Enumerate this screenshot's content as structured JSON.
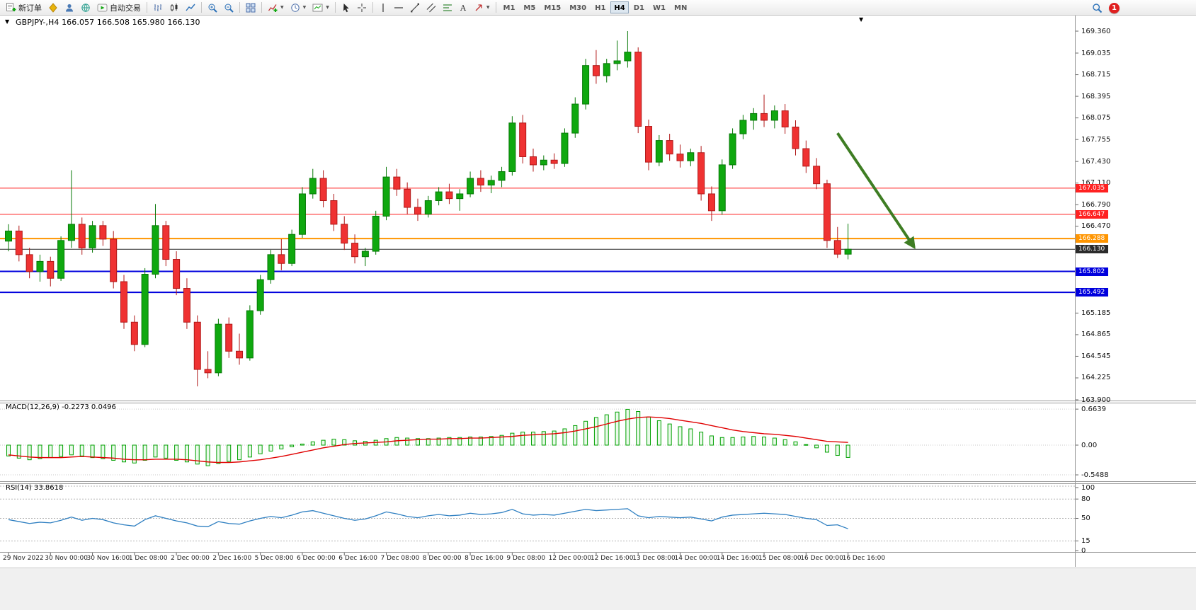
{
  "toolbar": {
    "new_order_label": "新订单",
    "auto_trading_label": "自动交易",
    "timeframes": [
      "M1",
      "M5",
      "M15",
      "M30",
      "H1",
      "H4",
      "D1",
      "W1",
      "MN"
    ],
    "active_timeframe": "H4",
    "notification_count": "1"
  },
  "chart": {
    "title": "GBPJPY-,H4 166.057 166.508 165.980 166.130",
    "symbol": "GBPJPY-",
    "period": "H4",
    "ohlc": {
      "open": "166.057",
      "high": "166.508",
      "low": "165.980",
      "close": "166.130"
    }
  },
  "colors": {
    "bull": "#0fa80f",
    "bull_stroke": "#067806",
    "bear": "#ef3232",
    "bear_stroke": "#b01818",
    "arrow": "#3e7d23",
    "macd_hist_stroke": "#00a000",
    "macd_hist_fill": "#eafaea",
    "macd_signal": "#e00000",
    "rsi_line": "#2e7fc1"
  },
  "chart_data": [
    {
      "type": "candlestick",
      "name": "GBPJPY- H4",
      "ylim": [
        163.9,
        169.36
      ],
      "y_ticks": [
        "169.360",
        "169.035",
        "168.715",
        "168.395",
        "168.075",
        "167.755",
        "167.430",
        "167.110",
        "166.790",
        "166.470",
        "165.185",
        "164.865",
        "164.545",
        "164.225",
        "163.900"
      ],
      "x_labels": [
        "29 Nov 2022",
        "30 Nov 00:00",
        "30 Nov 16:00",
        "1 Dec 08:00",
        "2 Dec 00:00",
        "2 Dec 16:00",
        "5 Dec 08:00",
        "6 Dec 00:00",
        "6 Dec 16:00",
        "7 Dec 08:00",
        "8 Dec 00:00",
        "8 Dec 16:00",
        "9 Dec 08:00",
        "12 Dec 00:00",
        "12 Dec 16:00",
        "13 Dec 08:00",
        "14 Dec 00:00",
        "14 Dec 16:00",
        "15 Dec 08:00",
        "16 Dec 00:00",
        "16 Dec 16:00"
      ],
      "candles_per_label": 4,
      "candles_ohlc": [
        [
          166.25,
          166.5,
          166.1,
          166.4
        ],
        [
          166.4,
          166.48,
          165.95,
          166.05
        ],
        [
          166.05,
          166.15,
          165.7,
          165.8
        ],
        [
          165.8,
          166.05,
          165.65,
          165.95
        ],
        [
          165.95,
          166.02,
          165.58,
          165.7
        ],
        [
          165.7,
          166.32,
          165.66,
          166.26
        ],
        [
          166.26,
          167.3,
          166.15,
          166.5
        ],
        [
          166.5,
          166.6,
          166.05,
          166.15
        ],
        [
          166.15,
          166.55,
          166.08,
          166.48
        ],
        [
          166.48,
          166.55,
          166.18,
          166.28
        ],
        [
          166.28,
          166.4,
          165.55,
          165.65
        ],
        [
          165.65,
          165.75,
          164.95,
          165.05
        ],
        [
          165.05,
          165.15,
          164.62,
          164.72
        ],
        [
          164.72,
          165.85,
          164.68,
          165.76
        ],
        [
          165.76,
          166.8,
          165.7,
          166.48
        ],
        [
          166.48,
          166.55,
          165.88,
          165.98
        ],
        [
          165.98,
          166.1,
          165.45,
          165.55
        ],
        [
          165.55,
          165.7,
          164.95,
          165.05
        ],
        [
          165.05,
          165.15,
          164.1,
          164.35
        ],
        [
          164.35,
          164.62,
          164.22,
          164.3
        ],
        [
          164.3,
          165.1,
          164.25,
          165.02
        ],
        [
          165.02,
          165.12,
          164.52,
          164.62
        ],
        [
          164.62,
          164.88,
          164.42,
          164.52
        ],
        [
          164.52,
          165.3,
          164.48,
          165.22
        ],
        [
          165.22,
          165.75,
          165.16,
          165.68
        ],
        [
          165.68,
          166.12,
          165.62,
          166.05
        ],
        [
          166.05,
          166.28,
          165.82,
          165.92
        ],
        [
          165.92,
          166.42,
          165.88,
          166.35
        ],
        [
          166.35,
          167.05,
          166.3,
          166.95
        ],
        [
          166.95,
          167.32,
          166.88,
          167.18
        ],
        [
          167.18,
          167.3,
          166.75,
          166.85
        ],
        [
          166.85,
          166.95,
          166.4,
          166.5
        ],
        [
          166.5,
          166.62,
          166.12,
          166.22
        ],
        [
          166.22,
          166.35,
          165.92,
          166.02
        ],
        [
          166.02,
          166.15,
          165.88,
          166.1
        ],
        [
          166.1,
          166.7,
          166.05,
          166.62
        ],
        [
          166.62,
          167.35,
          166.56,
          167.2
        ],
        [
          167.2,
          167.32,
          166.92,
          167.02
        ],
        [
          167.02,
          167.12,
          166.65,
          166.75
        ],
        [
          166.75,
          166.88,
          166.55,
          166.65
        ],
        [
          166.65,
          166.92,
          166.6,
          166.85
        ],
        [
          166.85,
          167.05,
          166.78,
          166.98
        ],
        [
          166.98,
          167.1,
          166.8,
          166.88
        ],
        [
          166.88,
          167.02,
          166.7,
          166.95
        ],
        [
          166.95,
          167.28,
          166.9,
          167.18
        ],
        [
          167.18,
          167.3,
          166.98,
          167.08
        ],
        [
          167.08,
          167.22,
          166.96,
          167.15
        ],
        [
          167.15,
          167.35,
          167.05,
          167.28
        ],
        [
          167.28,
          168.1,
          167.22,
          168.0
        ],
        [
          168.0,
          168.12,
          167.4,
          167.5
        ],
        [
          167.5,
          167.62,
          167.28,
          167.38
        ],
        [
          167.38,
          167.52,
          167.3,
          167.45
        ],
        [
          167.45,
          167.55,
          167.32,
          167.4
        ],
        [
          167.4,
          167.92,
          167.35,
          167.85
        ],
        [
          167.85,
          168.38,
          167.78,
          168.28
        ],
        [
          168.28,
          168.95,
          168.2,
          168.85
        ],
        [
          168.85,
          169.08,
          168.58,
          168.7
        ],
        [
          168.7,
          168.95,
          168.6,
          168.88
        ],
        [
          168.88,
          169.22,
          168.78,
          168.92
        ],
        [
          168.92,
          169.36,
          168.82,
          169.05
        ],
        [
          169.05,
          169.12,
          167.85,
          167.95
        ],
        [
          167.95,
          168.05,
          167.3,
          167.42
        ],
        [
          167.42,
          167.82,
          167.36,
          167.74
        ],
        [
          167.74,
          167.84,
          167.44,
          167.54
        ],
        [
          167.54,
          167.68,
          167.34,
          167.44
        ],
        [
          167.44,
          167.62,
          167.36,
          167.56
        ],
        [
          167.56,
          167.66,
          166.85,
          166.95
        ],
        [
          166.95,
          167.06,
          166.55,
          166.7
        ],
        [
          166.7,
          167.46,
          166.64,
          167.38
        ],
        [
          167.38,
          167.92,
          167.32,
          167.84
        ],
        [
          167.84,
          168.12,
          167.76,
          168.04
        ],
        [
          168.04,
          168.22,
          167.9,
          168.14
        ],
        [
          168.14,
          168.42,
          167.94,
          168.04
        ],
        [
          168.04,
          168.26,
          167.92,
          168.18
        ],
        [
          168.18,
          168.28,
          167.84,
          167.94
        ],
        [
          167.94,
          168.04,
          167.52,
          167.62
        ],
        [
          167.62,
          167.74,
          167.26,
          167.36
        ],
        [
          167.36,
          167.48,
          167.02,
          167.1
        ],
        [
          167.1,
          167.16,
          166.15,
          166.26
        ],
        [
          166.26,
          166.46,
          166.0,
          166.057
        ],
        [
          166.057,
          166.508,
          165.98,
          166.13
        ]
      ],
      "levels": [
        {
          "price": 167.035,
          "label": "167.035",
          "color": "#ff2222",
          "width": 1
        },
        {
          "price": 166.647,
          "label": "166.647",
          "color": "#ff2222",
          "width": 1
        },
        {
          "price": 166.288,
          "label": "166.288",
          "color": "#ff9500",
          "width": 2
        },
        {
          "price": 166.13,
          "label": "166.130",
          "color": "#2b2b2b",
          "width": 1,
          "is_current_price": true
        },
        {
          "price": 165.802,
          "label": "165.802",
          "color": "#0000dd",
          "width": 2
        },
        {
          "price": 165.492,
          "label": "165.492",
          "color": "#0000dd",
          "width": 2
        }
      ],
      "annotations": [
        {
          "type": "arrow",
          "color": "#3e7d23",
          "from": {
            "index": 79,
            "price": 167.85
          },
          "to": {
            "index": 86.3,
            "price": 166.16
          }
        }
      ]
    },
    {
      "type": "bar",
      "name": "MACD(12,26,9)",
      "current_values": "-0.2273 0.0496",
      "ylim": [
        -0.5488,
        0.6639
      ],
      "y_ticks": [
        "0.6639",
        "0.00",
        "-0.5488"
      ],
      "histogram": [
        -0.2,
        -0.24,
        -0.27,
        -0.25,
        -0.23,
        -0.21,
        -0.18,
        -0.2,
        -0.23,
        -0.25,
        -0.28,
        -0.31,
        -0.33,
        -0.28,
        -0.22,
        -0.24,
        -0.28,
        -0.31,
        -0.35,
        -0.38,
        -0.34,
        -0.3,
        -0.27,
        -0.22,
        -0.16,
        -0.11,
        -0.07,
        -0.03,
        0.02,
        0.06,
        0.09,
        0.11,
        0.1,
        0.08,
        0.07,
        0.09,
        0.12,
        0.14,
        0.13,
        0.12,
        0.12,
        0.13,
        0.14,
        0.14,
        0.15,
        0.15,
        0.16,
        0.18,
        0.22,
        0.24,
        0.24,
        0.25,
        0.26,
        0.3,
        0.36,
        0.44,
        0.51,
        0.56,
        0.61,
        0.66,
        0.62,
        0.52,
        0.45,
        0.39,
        0.34,
        0.3,
        0.24,
        0.17,
        0.14,
        0.14,
        0.15,
        0.16,
        0.15,
        0.13,
        0.1,
        0.06,
        0.01,
        -0.05,
        -0.13,
        -0.19,
        -0.2273
      ],
      "signal_line": [
        -0.18,
        -0.2,
        -0.22,
        -0.23,
        -0.23,
        -0.23,
        -0.22,
        -0.21,
        -0.22,
        -0.23,
        -0.24,
        -0.26,
        -0.27,
        -0.27,
        -0.26,
        -0.26,
        -0.26,
        -0.27,
        -0.29,
        -0.31,
        -0.32,
        -0.32,
        -0.31,
        -0.29,
        -0.27,
        -0.24,
        -0.21,
        -0.17,
        -0.13,
        -0.09,
        -0.05,
        -0.02,
        0.01,
        0.03,
        0.04,
        0.05,
        0.06,
        0.08,
        0.09,
        0.1,
        0.11,
        0.11,
        0.12,
        0.12,
        0.13,
        0.13,
        0.14,
        0.15,
        0.16,
        0.18,
        0.19,
        0.2,
        0.21,
        0.23,
        0.26,
        0.3,
        0.34,
        0.39,
        0.44,
        0.48,
        0.51,
        0.52,
        0.51,
        0.49,
        0.46,
        0.43,
        0.4,
        0.36,
        0.32,
        0.28,
        0.25,
        0.23,
        0.21,
        0.2,
        0.18,
        0.16,
        0.13,
        0.1,
        0.07,
        0.06,
        0.0496
      ]
    },
    {
      "type": "line",
      "name": "RSI(14)",
      "current_value": "33.8618",
      "ylim": [
        0,
        100
      ],
      "y_ticks": [
        "100",
        "80",
        "50",
        "15",
        "0"
      ],
      "level_lines": [
        100,
        80,
        50,
        15
      ],
      "values": [
        48,
        45,
        42,
        44,
        43,
        47,
        52,
        47,
        50,
        48,
        43,
        40,
        38,
        48,
        54,
        50,
        46,
        43,
        38,
        37,
        45,
        42,
        41,
        46,
        50,
        53,
        51,
        55,
        60,
        62,
        58,
        54,
        50,
        47,
        49,
        54,
        60,
        57,
        53,
        51,
        54,
        56,
        54,
        55,
        58,
        56,
        57,
        59,
        64,
        57,
        55,
        56,
        55,
        58,
        61,
        64,
        62,
        63,
        64,
        65,
        54,
        51,
        53,
        52,
        51,
        52,
        49,
        46,
        52,
        55,
        56,
        57,
        58,
        57,
        56,
        53,
        50,
        48,
        39,
        40,
        33.86
      ]
    }
  ]
}
